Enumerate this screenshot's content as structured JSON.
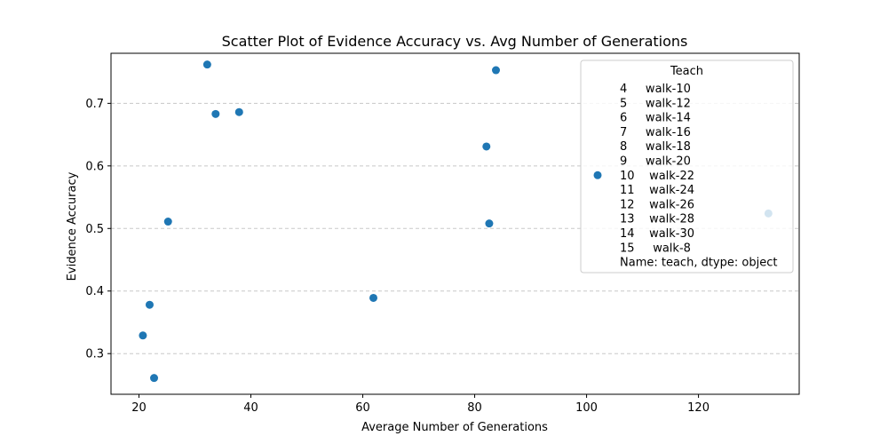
{
  "chart_data": {
    "type": "scatter",
    "title": "Scatter Plot of Evidence Accuracy vs. Avg Number of Generations",
    "xlabel": "Average Number of Generations",
    "ylabel": "Evidence Accuracy",
    "xlim": [
      15,
      138
    ],
    "ylim": [
      0.235,
      0.78
    ],
    "xticks": [
      20,
      40,
      60,
      80,
      100,
      120
    ],
    "xtick_labels": [
      "20",
      "40",
      "60",
      "80",
      "100",
      "120"
    ],
    "yticks": [
      0.3,
      0.4,
      0.5,
      0.6,
      0.7
    ],
    "ytick_labels": [
      "0.3",
      "0.4",
      "0.5",
      "0.6",
      "0.7"
    ],
    "grid": "y-dashed",
    "color": "#1f77b4",
    "series": [
      {
        "name": "",
        "points": [
          {
            "x": 20.7,
            "y": 0.329
          },
          {
            "x": 21.9,
            "y": 0.378
          },
          {
            "x": 22.7,
            "y": 0.261
          },
          {
            "x": 25.2,
            "y": 0.511
          },
          {
            "x": 32.2,
            "y": 0.762
          },
          {
            "x": 33.7,
            "y": 0.683
          },
          {
            "x": 37.9,
            "y": 0.686
          },
          {
            "x": 61.9,
            "y": 0.389
          },
          {
            "x": 82.1,
            "y": 0.631
          },
          {
            "x": 82.6,
            "y": 0.508
          },
          {
            "x": 83.8,
            "y": 0.753
          },
          {
            "x": 132.5,
            "y": 0.524
          }
        ]
      }
    ],
    "legend": {
      "title": "Teach",
      "placement": "top-right",
      "lines": [
        "4     walk-10",
        "5     walk-12",
        "6     walk-14",
        "7     walk-16",
        "8     walk-18",
        "9     walk-20",
        "10    walk-22",
        "11    walk-24",
        "12    walk-26",
        "13    walk-28",
        "14    walk-30",
        "15     walk-8",
        "Name: teach, dtype: object"
      ]
    }
  }
}
